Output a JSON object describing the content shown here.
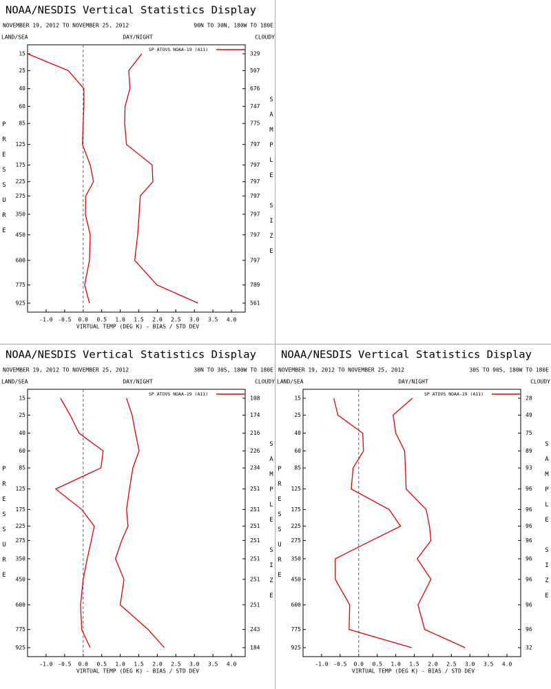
{
  "chart_data": [
    {
      "type": "line",
      "title": "NOAA/NESDIS Vertical Statistics Display",
      "subtitle": "NOVEMBER 19, 2012 TO NOVEMBER 25, 2012",
      "region": "90N TO 30N, 180W TO 180E",
      "left_header": "LAND/SEA",
      "center_header": "DAY/NIGHT",
      "right_header": "CLOUDY",
      "y_label": "PRESSURE",
      "y2_label": "SAMPLE SIZE",
      "x_label": "VIRTUAL TEMP (DEG K) - BIAS / STD DEV",
      "categories": [
        15,
        25,
        40,
        60,
        85,
        125,
        175,
        225,
        275,
        350,
        450,
        600,
        775,
        925
      ],
      "sample_sizes": [
        329,
        507,
        676,
        747,
        775,
        797,
        797,
        797,
        797,
        797,
        797,
        797,
        789,
        561
      ],
      "series": [
        {
          "name": "SP ATOVS NOAA-19 (A11)",
          "color": "#dd0000",
          "bias": [
            -1.5,
            -0.4,
            0.02,
            0.02,
            0.0,
            -0.02,
            0.19,
            0.28,
            0.07,
            0.06,
            0.19,
            0.17,
            0.04,
            0.17
          ],
          "std_dev": [
            1.58,
            1.23,
            1.26,
            1.13,
            1.12,
            1.17,
            1.86,
            1.88,
            1.54,
            1.51,
            1.47,
            1.39,
            1.99,
            3.1
          ]
        }
      ],
      "xlim": [
        -1.5,
        4.37
      ],
      "xticks": [
        {
          "value": -1,
          "label": "-1.0"
        },
        -0.5,
        {
          "value": 0,
          "label": "0.0"
        },
        0.5,
        {
          "value": 1,
          "label": "1.0"
        },
        1.5,
        {
          "value": 2,
          "label": "2.0"
        },
        2.5,
        {
          "value": 3,
          "label": "3.0"
        },
        3.5,
        {
          "value": 4,
          "label": "4.0"
        }
      ],
      "zero_line": true
    },
    {
      "type": "line",
      "title": "NOAA/NESDIS Vertical Statistics Display",
      "subtitle": "NOVEMBER 19, 2012 TO NOVEMBER 25, 2012",
      "region": "30N TO 30S, 180W TO 180E",
      "left_header": "LAND/SEA",
      "center_header": "DAY/NIGHT",
      "right_header": "CLOUDY",
      "y_label": "PRESSURE",
      "y2_label": "SAMPLE SIZE",
      "x_label": "VIRTUAL TEMP (DEG K) - BIAS / STD DEV",
      "categories": [
        15,
        25,
        40,
        60,
        85,
        125,
        175,
        225,
        275,
        350,
        450,
        600,
        775,
        925
      ],
      "sample_sizes": [
        108,
        174,
        216,
        226,
        234,
        251,
        251,
        251,
        251,
        251,
        251,
        251,
        243,
        184
      ],
      "series": [
        {
          "name": "SP ATOVS NOAA-19 (A11)",
          "color": "#dd0000",
          "bias": [
            -0.61,
            -0.35,
            -0.11,
            0.54,
            0.48,
            -0.74,
            -0.04,
            0.3,
            0.22,
            0.11,
            0.0,
            -0.07,
            -0.04,
            0.19
          ],
          "std_dev": [
            1.17,
            1.32,
            1.41,
            1.51,
            1.34,
            1.25,
            1.17,
            1.21,
            1.04,
            0.87,
            1.1,
            1.0,
            1.75,
            2.19
          ]
        }
      ],
      "xlim": [
        -1.5,
        4.37
      ],
      "xticks": [
        {
          "value": -1,
          "label": "-1.0"
        },
        -0.5,
        {
          "value": 0,
          "label": "0.0"
        },
        0.5,
        {
          "value": 1,
          "label": "1.0"
        },
        1.5,
        {
          "value": 2,
          "label": "2.0"
        },
        2.5,
        {
          "value": 3,
          "label": "3.0"
        },
        3.5,
        {
          "value": 4,
          "label": "4.0"
        }
      ],
      "zero_line": true
    },
    {
      "type": "line",
      "title": "NOAA/NESDIS Vertical Statistics Display",
      "subtitle": "NOVEMBER 19, 2012 TO NOVEMBER 25, 2012",
      "region": "30S TO 90S, 180W TO 180E",
      "left_header": "LAND/SEA",
      "center_header": "DAY/NIGHT",
      "right_header": "CLOUDY",
      "y_label": "PRESSURE",
      "y2_label": "SAMPLE SIZE",
      "x_label": "VIRTUAL TEMP (DEG K) - BIAS / STD DEV",
      "categories": [
        15,
        25,
        40,
        60,
        85,
        125,
        175,
        225,
        275,
        350,
        450,
        600,
        775,
        925
      ],
      "sample_sizes": [
        28,
        49,
        75,
        89,
        93,
        96,
        96,
        96,
        96,
        96,
        96,
        96,
        96,
        32
      ],
      "series": [
        {
          "name": "SP ATOVS NOAA-19 (A11)",
          "color": "#dd0000",
          "bias": [
            -0.67,
            -0.56,
            0.11,
            0.13,
            -0.15,
            -0.2,
            0.82,
            1.13,
            0.35,
            -0.63,
            -0.63,
            -0.24,
            -0.26,
            1.43
          ],
          "std_dev": [
            1.45,
            0.93,
            1.0,
            1.24,
            1.26,
            1.28,
            1.82,
            1.91,
            1.95,
            1.58,
            1.95,
            1.6,
            1.78,
            2.87
          ]
        }
      ],
      "xlim": [
        -1.5,
        4.37
      ],
      "xticks": [
        {
          "value": -1,
          "label": "-1.0"
        },
        -0.5,
        {
          "value": 0,
          "label": "0.0"
        },
        0.5,
        {
          "value": 1,
          "label": "1.0"
        },
        1.5,
        {
          "value": 2,
          "label": "2.0"
        },
        2.5,
        {
          "value": 3,
          "label": "3.0"
        },
        3.5,
        {
          "value": 4,
          "label": "4.0"
        }
      ],
      "zero_line": true
    }
  ]
}
